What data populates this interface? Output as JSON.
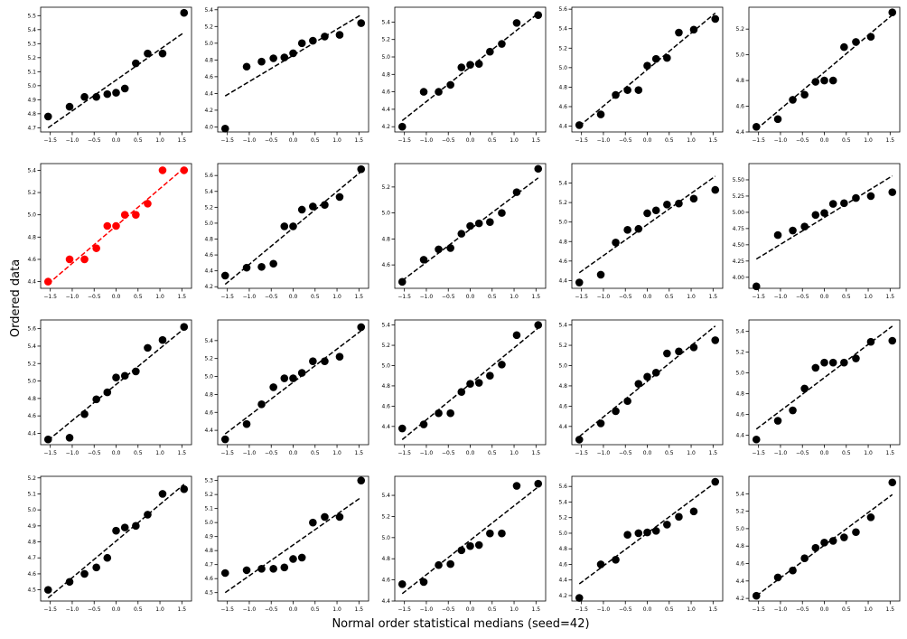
{
  "figure": {
    "supxlabel": "Normal order statistical medians (seed=42)",
    "supylabel": "Ordered data"
  },
  "colors": {
    "default": "#000000",
    "highlight": "#ff0000"
  },
  "chart_data": {
    "type": "scatter",
    "layout": "grid 4x5 of probability plots",
    "x": [
      -1.55,
      -1.06,
      -0.72,
      -0.45,
      -0.2,
      0.0,
      0.2,
      0.45,
      0.72,
      1.06,
      1.55
    ],
    "x_ticks": [
      -1.5,
      -1.0,
      -0.5,
      0.0,
      0.5,
      1.0,
      1.5
    ],
    "x_tick_labels": [
      "−1.5",
      "−1.0",
      "−0.5",
      "0.0",
      "0.5",
      "1.0",
      "1.5"
    ],
    "xlim": [
      -1.72,
      1.72
    ],
    "panels": [
      {
        "ylim": [
          4.67,
          5.56
        ],
        "yticks": [
          4.7,
          4.8,
          4.9,
          5.0,
          5.1,
          5.2,
          5.3,
          5.4,
          5.5
        ],
        "ytick_labels": [
          "4.7",
          "4.8",
          "4.9",
          "5.0",
          "5.1",
          "5.2",
          "5.3",
          "5.4",
          "5.5"
        ],
        "y": [
          4.78,
          4.85,
          4.92,
          4.92,
          4.94,
          4.95,
          4.98,
          5.16,
          5.23,
          5.23,
          5.52
        ],
        "fit": [
          4.7,
          5.38
        ],
        "color": "black"
      },
      {
        "ylim": [
          3.94,
          5.43
        ],
        "yticks": [
          4.0,
          4.2,
          4.4,
          4.6,
          4.8,
          5.0,
          5.2,
          5.4
        ],
        "ytick_labels": [
          "4.0",
          "4.2",
          "4.4",
          "4.6",
          "4.8",
          "5.0",
          "5.2",
          "5.4"
        ],
        "y": [
          3.98,
          4.72,
          4.78,
          4.82,
          4.83,
          4.88,
          5.0,
          5.03,
          5.08,
          5.1,
          5.24
        ],
        "fit": [
          4.37,
          5.34
        ],
        "color": "black"
      },
      {
        "ylim": [
          4.14,
          5.57
        ],
        "yticks": [
          4.2,
          4.4,
          4.6,
          4.8,
          5.0,
          5.2,
          5.4
        ],
        "ytick_labels": [
          "4.2",
          "4.4",
          "4.6",
          "4.8",
          "5.0",
          "5.2",
          "5.4"
        ],
        "y": [
          4.2,
          4.6,
          4.6,
          4.68,
          4.88,
          4.91,
          4.92,
          5.06,
          5.15,
          5.39,
          5.48
        ],
        "fit": [
          4.27,
          5.5
        ],
        "color": "black"
      },
      {
        "ylim": [
          4.34,
          5.62
        ],
        "yticks": [
          4.4,
          4.6,
          4.8,
          5.0,
          5.2,
          5.4,
          5.6
        ],
        "ytick_labels": [
          "4.4",
          "4.6",
          "4.8",
          "5.0",
          "5.2",
          "5.4",
          "5.6"
        ],
        "y": [
          4.41,
          4.52,
          4.72,
          4.77,
          4.77,
          5.02,
          5.09,
          5.1,
          5.36,
          5.39,
          5.5
        ],
        "fit": [
          4.4,
          5.56
        ],
        "color": "black"
      },
      {
        "ylim": [
          4.4,
          5.37
        ],
        "yticks": [
          4.4,
          4.6,
          4.8,
          5.0,
          5.2
        ],
        "ytick_labels": [
          "4.4",
          "4.6",
          "4.8",
          "5.0",
          "5.2"
        ],
        "y": [
          4.44,
          4.5,
          4.65,
          4.69,
          4.79,
          4.8,
          4.8,
          5.06,
          5.1,
          5.14,
          5.33
        ],
        "fit": [
          4.42,
          5.31
        ],
        "color": "black"
      },
      {
        "ylim": [
          4.34,
          5.46
        ],
        "yticks": [
          4.4,
          4.6,
          4.8,
          5.0,
          5.2,
          5.4
        ],
        "ytick_labels": [
          "4.4",
          "4.6",
          "4.8",
          "5.0",
          "5.2",
          "5.4"
        ],
        "y": [
          4.4,
          4.6,
          4.6,
          4.7,
          4.9,
          4.9,
          5.0,
          5.0,
          5.1,
          5.4,
          5.4
        ],
        "fit": [
          4.38,
          5.42
        ],
        "color": "red"
      },
      {
        "ylim": [
          4.18,
          5.75
        ],
        "yticks": [
          4.2,
          4.4,
          4.6,
          4.8,
          5.0,
          5.2,
          5.4,
          5.6
        ],
        "ytick_labels": [
          "4.2",
          "4.4",
          "4.6",
          "4.8",
          "5.0",
          "5.2",
          "5.4",
          "5.6"
        ],
        "y": [
          4.34,
          4.44,
          4.45,
          4.49,
          4.96,
          4.96,
          5.17,
          5.21,
          5.23,
          5.33,
          5.68
        ],
        "fit": [
          4.23,
          5.65
        ],
        "color": "black"
      },
      {
        "ylim": [
          4.42,
          5.38
        ],
        "yticks": [
          4.6,
          4.8,
          5.0,
          5.2
        ],
        "ytick_labels": [
          "4.6",
          "4.8",
          "5.0",
          "5.2"
        ],
        "y": [
          4.47,
          4.64,
          4.72,
          4.73,
          4.84,
          4.9,
          4.92,
          4.93,
          5.0,
          5.16,
          5.34
        ],
        "fit": [
          4.48,
          5.27
        ],
        "color": "black"
      },
      {
        "ylim": [
          4.32,
          5.6
        ],
        "yticks": [
          4.4,
          4.6,
          4.8,
          5.0,
          5.2,
          5.4
        ],
        "ytick_labels": [
          "4.4",
          "4.6",
          "4.8",
          "5.0",
          "5.2",
          "5.4"
        ],
        "y": [
          4.38,
          4.46,
          4.79,
          4.92,
          4.93,
          5.09,
          5.12,
          5.18,
          5.19,
          5.24,
          5.33
        ],
        "fit": [
          4.48,
          5.47
        ],
        "color": "black"
      },
      {
        "ylim": [
          3.83,
          5.75
        ],
        "yticks": [
          4.0,
          4.25,
          4.5,
          4.75,
          5.0,
          5.25,
          5.5
        ],
        "ytick_labels": [
          "4.00",
          "4.25",
          "4.50",
          "4.75",
          "5.00",
          "5.25",
          "5.50"
        ],
        "y": [
          3.86,
          4.65,
          4.72,
          4.78,
          4.96,
          4.99,
          5.13,
          5.14,
          5.22,
          5.25,
          5.31
        ],
        "fit": [
          4.28,
          5.56
        ],
        "color": "black"
      },
      {
        "ylim": [
          4.27,
          5.7
        ],
        "yticks": [
          4.4,
          4.6,
          4.8,
          5.0,
          5.2,
          5.4,
          5.6
        ],
        "ytick_labels": [
          "4.4",
          "4.6",
          "4.8",
          "5.0",
          "5.2",
          "5.4",
          "5.6"
        ],
        "y": [
          4.33,
          4.35,
          4.62,
          4.79,
          4.87,
          5.04,
          5.06,
          5.11,
          5.38,
          5.47,
          5.62
        ],
        "fit": [
          4.32,
          5.6
        ],
        "color": "black"
      },
      {
        "ylim": [
          4.24,
          5.63
        ],
        "yticks": [
          4.4,
          4.6,
          4.8,
          5.0,
          5.2,
          5.4
        ],
        "ytick_labels": [
          "4.4",
          "4.6",
          "4.8",
          "5.0",
          "5.2",
          "5.4"
        ],
        "y": [
          4.3,
          4.47,
          4.69,
          4.88,
          4.98,
          4.98,
          5.04,
          5.17,
          5.17,
          5.22,
          5.55
        ],
        "fit": [
          4.36,
          5.51
        ],
        "color": "black"
      },
      {
        "ylim": [
          4.22,
          5.45
        ],
        "yticks": [
          4.4,
          4.6,
          4.8,
          5.0,
          5.2,
          5.4
        ],
        "ytick_labels": [
          "4.4",
          "4.6",
          "4.8",
          "5.0",
          "5.2",
          "5.4"
        ],
        "y": [
          4.38,
          4.42,
          4.53,
          4.53,
          4.74,
          4.82,
          4.83,
          4.9,
          5.01,
          5.3,
          5.4
        ],
        "fit": [
          4.27,
          5.37
        ],
        "color": "black"
      },
      {
        "ylim": [
          4.22,
          5.45
        ],
        "yticks": [
          4.4,
          4.6,
          4.8,
          5.0,
          5.2,
          5.4
        ],
        "ytick_labels": [
          "4.4",
          "4.6",
          "4.8",
          "5.0",
          "5.2",
          "5.4"
        ],
        "y": [
          4.27,
          4.43,
          4.55,
          4.65,
          4.82,
          4.89,
          4.93,
          5.12,
          5.14,
          5.18,
          5.25
        ],
        "fit": [
          4.3,
          5.39
        ],
        "color": "black"
      },
      {
        "ylim": [
          4.31,
          5.51
        ],
        "yticks": [
          4.4,
          4.6,
          4.8,
          5.0,
          5.2,
          5.4
        ],
        "ytick_labels": [
          "4.4",
          "4.6",
          "4.8",
          "5.0",
          "5.2",
          "5.4"
        ],
        "y": [
          4.36,
          4.54,
          4.64,
          4.85,
          5.05,
          5.1,
          5.1,
          5.1,
          5.14,
          5.3,
          5.31
        ],
        "fit": [
          4.46,
          5.45
        ],
        "color": "black"
      },
      {
        "ylim": [
          4.43,
          5.21
        ],
        "yticks": [
          4.5,
          4.6,
          4.7,
          4.8,
          4.9,
          5.0,
          5.1,
          5.2
        ],
        "ytick_labels": [
          "4.5",
          "4.6",
          "4.7",
          "4.8",
          "4.9",
          "5.0",
          "5.1",
          "5.2"
        ],
        "y": [
          4.5,
          4.55,
          4.6,
          4.64,
          4.7,
          4.87,
          4.89,
          4.9,
          4.97,
          5.1,
          5.13
        ],
        "fit": [
          4.45,
          5.16
        ],
        "color": "black"
      },
      {
        "ylim": [
          4.44,
          5.33
        ],
        "yticks": [
          4.5,
          4.6,
          4.7,
          4.8,
          4.9,
          5.0,
          5.1,
          5.2,
          5.3
        ],
        "ytick_labels": [
          "4.5",
          "4.6",
          "4.7",
          "4.8",
          "4.9",
          "5.0",
          "5.1",
          "5.2",
          "5.3"
        ],
        "y": [
          4.64,
          4.66,
          4.67,
          4.67,
          4.68,
          4.74,
          4.75,
          5.0,
          5.04,
          5.04,
          5.3
        ],
        "fit": [
          4.5,
          5.18
        ],
        "color": "black"
      },
      {
        "ylim": [
          4.4,
          5.58
        ],
        "yticks": [
          4.4,
          4.6,
          4.8,
          5.0,
          5.2,
          5.4
        ],
        "ytick_labels": [
          "4.4",
          "4.6",
          "4.8",
          "5.0",
          "5.2",
          "5.4"
        ],
        "y": [
          4.56,
          4.58,
          4.74,
          4.75,
          4.88,
          4.92,
          4.93,
          5.04,
          5.04,
          5.49,
          5.51
        ],
        "fit": [
          4.47,
          5.48
        ],
        "color": "black"
      },
      {
        "ylim": [
          4.13,
          5.73
        ],
        "yticks": [
          4.2,
          4.4,
          4.6,
          4.8,
          5.0,
          5.2,
          5.4,
          5.6
        ],
        "ytick_labels": [
          "4.2",
          "4.4",
          "4.6",
          "4.8",
          "5.0",
          "5.2",
          "5.4",
          "5.6"
        ],
        "y": [
          4.17,
          4.6,
          4.66,
          4.98,
          5.0,
          5.01,
          5.03,
          5.11,
          5.21,
          5.28,
          5.66
        ],
        "fit": [
          4.35,
          5.65
        ],
        "color": "black"
      },
      {
        "ylim": [
          4.17,
          5.6
        ],
        "yticks": [
          4.2,
          4.4,
          4.6,
          4.8,
          5.0,
          5.2,
          5.4
        ],
        "ytick_labels": [
          "4.2",
          "4.4",
          "4.6",
          "4.8",
          "5.0",
          "5.2",
          "5.4"
        ],
        "y": [
          4.23,
          4.44,
          4.52,
          4.66,
          4.78,
          4.84,
          4.86,
          4.9,
          4.96,
          5.13,
          5.53
        ],
        "fit": [
          4.23,
          5.39
        ],
        "color": "black"
      }
    ]
  }
}
